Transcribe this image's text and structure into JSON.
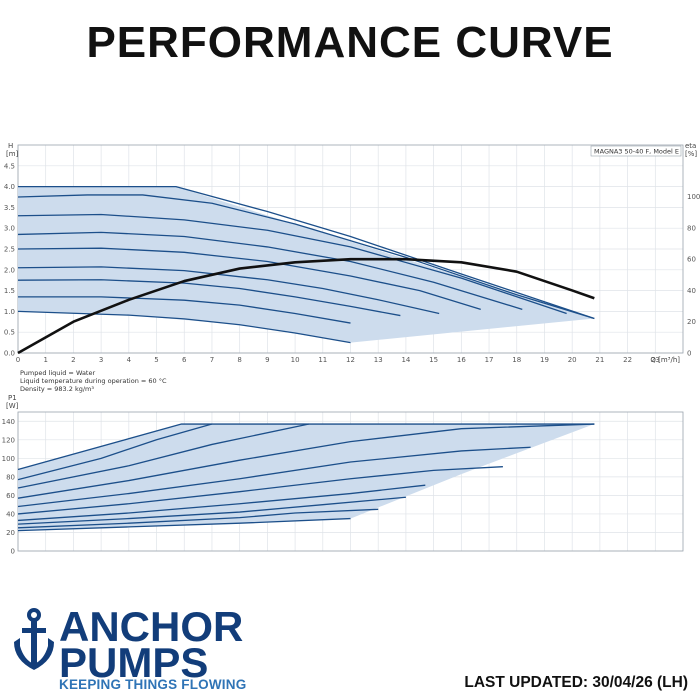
{
  "page": {
    "title": "PERFORMANCE CURVE",
    "last_updated": "LAST UPDATED: 30/04/26 (LH)"
  },
  "brand": {
    "line1": "ANCHOR",
    "line2": "PUMPS",
    "tagline": "KEEPING THINGS FLOWING",
    "logo_icon": "anchor-icon",
    "color_dark": "#123d7a",
    "color_light": "#2f74b6"
  },
  "pumped_liquid": {
    "line1": "Pumped liquid = Water",
    "line2": "Liquid temperature during operation = 60 °C",
    "line3": "Density = 983.2 kg/m³"
  },
  "chart_data": [
    {
      "type": "line",
      "name": "head",
      "legend": "MAGNA3 50-40 F, Model E",
      "ylabel_top": "H",
      "ylabel_unit": "[m]",
      "y2label_top": "eta",
      "y2label_unit": "[%]",
      "xlabel": "Q [m³/h]",
      "xlim": [
        0,
        24
      ],
      "ylim": [
        0,
        5
      ],
      "x_ticks": [
        0,
        1,
        2,
        3,
        4,
        5,
        6,
        7,
        8,
        9,
        10,
        11,
        12,
        13,
        14,
        15,
        16,
        17,
        18,
        19,
        20,
        21,
        22,
        23
      ],
      "y_ticks": [
        0.0,
        0.5,
        1.0,
        1.5,
        2.0,
        2.5,
        3.0,
        3.5,
        4.0,
        4.5
      ],
      "y_tick_labels": [
        "0.0",
        "0.5",
        "1.0",
        "1.5",
        "2.0",
        "2.5",
        "3.0",
        "3.5",
        "4.0",
        "4.5"
      ],
      "y2_ticks": [
        0,
        20,
        40,
        60,
        80,
        100
      ],
      "y2lim": [
        0,
        133
      ],
      "grid": true,
      "area_color": "#cddced",
      "curve_color": "#1c4f8a",
      "envelope": [
        [
          0,
          4.0
        ],
        [
          5.7,
          4.0
        ],
        [
          20.8,
          0.83
        ],
        [
          12,
          0.25
        ],
        [
          8,
          0.68
        ],
        [
          4,
          0.91
        ],
        [
          0,
          1.0
        ]
      ],
      "series": [
        {
          "values": [
            [
              0,
              4.0
            ],
            [
              5.7,
              4.0
            ],
            [
              9,
              3.4
            ],
            [
              12,
              2.8
            ],
            [
              16,
              1.9
            ],
            [
              20.8,
              0.83
            ]
          ]
        },
        {
          "values": [
            [
              0,
              3.75
            ],
            [
              2.5,
              3.8
            ],
            [
              4.5,
              3.8
            ],
            [
              7,
              3.6
            ],
            [
              10,
              3.1
            ],
            [
              14,
              2.3
            ],
            [
              18,
              1.4
            ],
            [
              20.8,
              0.83
            ]
          ]
        },
        {
          "values": [
            [
              0,
              3.3
            ],
            [
              3,
              3.33
            ],
            [
              6,
              3.2
            ],
            [
              9,
              2.95
            ],
            [
              12,
              2.55
            ],
            [
              16,
              1.8
            ],
            [
              19.8,
              0.95
            ]
          ]
        },
        {
          "values": [
            [
              0,
              2.85
            ],
            [
              3,
              2.9
            ],
            [
              6,
              2.8
            ],
            [
              9,
              2.55
            ],
            [
              12,
              2.2
            ],
            [
              15,
              1.7
            ],
            [
              18.2,
              1.05
            ]
          ]
        },
        {
          "values": [
            [
              0,
              2.5
            ],
            [
              3,
              2.52
            ],
            [
              6,
              2.42
            ],
            [
              9,
              2.2
            ],
            [
              12,
              1.85
            ],
            [
              14.5,
              1.5
            ],
            [
              16.7,
              1.05
            ]
          ]
        },
        {
          "values": [
            [
              0,
              2.05
            ],
            [
              3,
              2.07
            ],
            [
              6,
              1.98
            ],
            [
              9,
              1.76
            ],
            [
              11,
              1.55
            ],
            [
              13,
              1.28
            ],
            [
              15.2,
              0.95
            ]
          ]
        },
        {
          "values": [
            [
              0,
              1.75
            ],
            [
              3,
              1.76
            ],
            [
              6,
              1.68
            ],
            [
              8,
              1.55
            ],
            [
              10,
              1.35
            ],
            [
              12,
              1.12
            ],
            [
              13.8,
              0.9
            ]
          ]
        },
        {
          "values": [
            [
              0,
              1.35
            ],
            [
              3,
              1.35
            ],
            [
              6,
              1.27
            ],
            [
              8,
              1.15
            ],
            [
              10,
              0.95
            ],
            [
              12,
              0.72
            ]
          ]
        },
        {
          "values": [
            [
              0,
              1.0
            ],
            [
              4,
              0.91
            ],
            [
              6,
              0.82
            ],
            [
              8,
              0.68
            ],
            [
              10,
              0.48
            ],
            [
              12,
              0.25
            ]
          ]
        }
      ],
      "efficiency": {
        "name": "eta",
        "values": [
          [
            0,
            0
          ],
          [
            2,
            20
          ],
          [
            4,
            34
          ],
          [
            6,
            46
          ],
          [
            8,
            54
          ],
          [
            10,
            58
          ],
          [
            12,
            60
          ],
          [
            14,
            60
          ],
          [
            16,
            58
          ],
          [
            18,
            52
          ],
          [
            20,
            40
          ],
          [
            20.8,
            35
          ]
        ]
      }
    },
    {
      "type": "line",
      "name": "power",
      "ylabel_top": "P1",
      "ylabel_unit": "[W]",
      "xlim": [
        0,
        24
      ],
      "ylim": [
        0,
        150
      ],
      "y_ticks": [
        0,
        20,
        40,
        60,
        80,
        100,
        120,
        140
      ],
      "grid": true,
      "area_color": "#cddced",
      "curve_color": "#1c4f8a",
      "envelope": [
        [
          0,
          88
        ],
        [
          5.9,
          137
        ],
        [
          20.8,
          137
        ],
        [
          16,
          83
        ],
        [
          12,
          35
        ],
        [
          8,
          30
        ],
        [
          4,
          26
        ],
        [
          0,
          22
        ]
      ],
      "series": [
        {
          "values": [
            [
              0,
              88
            ],
            [
              5.9,
              137
            ],
            [
              20.8,
              137
            ]
          ]
        },
        {
          "values": [
            [
              0,
              77
            ],
            [
              3,
              100
            ],
            [
              5,
              120
            ],
            [
              7,
              137
            ]
          ]
        },
        {
          "values": [
            [
              0,
              68
            ],
            [
              4,
              92
            ],
            [
              7,
              115
            ],
            [
              10.5,
              137
            ]
          ]
        },
        {
          "values": [
            [
              0,
              57
            ],
            [
              4,
              76
            ],
            [
              8,
              98
            ],
            [
              12,
              118
            ],
            [
              16,
              132
            ],
            [
              20.8,
              137
            ]
          ]
        },
        {
          "values": [
            [
              0,
              48
            ],
            [
              4,
              62
            ],
            [
              8,
              78
            ],
            [
              12,
              96
            ],
            [
              16,
              108
            ],
            [
              18.5,
              112
            ]
          ]
        },
        {
          "values": [
            [
              0,
              40
            ],
            [
              4,
              51
            ],
            [
              8,
              64
            ],
            [
              12,
              78
            ],
            [
              15,
              87
            ],
            [
              17.5,
              91
            ]
          ]
        },
        {
          "values": [
            [
              0,
              33
            ],
            [
              4,
              41
            ],
            [
              8,
              51
            ],
            [
              12,
              62
            ],
            [
              14.7,
              71
            ]
          ]
        },
        {
          "values": [
            [
              0,
              29
            ],
            [
              4,
              35
            ],
            [
              8,
              42
            ],
            [
              11,
              50
            ],
            [
              14,
              58
            ]
          ]
        },
        {
          "values": [
            [
              0,
              25
            ],
            [
              4,
              30
            ],
            [
              8,
              36
            ],
            [
              10,
              41
            ],
            [
              13,
              45
            ]
          ]
        },
        {
          "values": [
            [
              0,
              22
            ],
            [
              4,
              26
            ],
            [
              8,
              30
            ],
            [
              12,
              35
            ]
          ]
        }
      ]
    }
  ]
}
